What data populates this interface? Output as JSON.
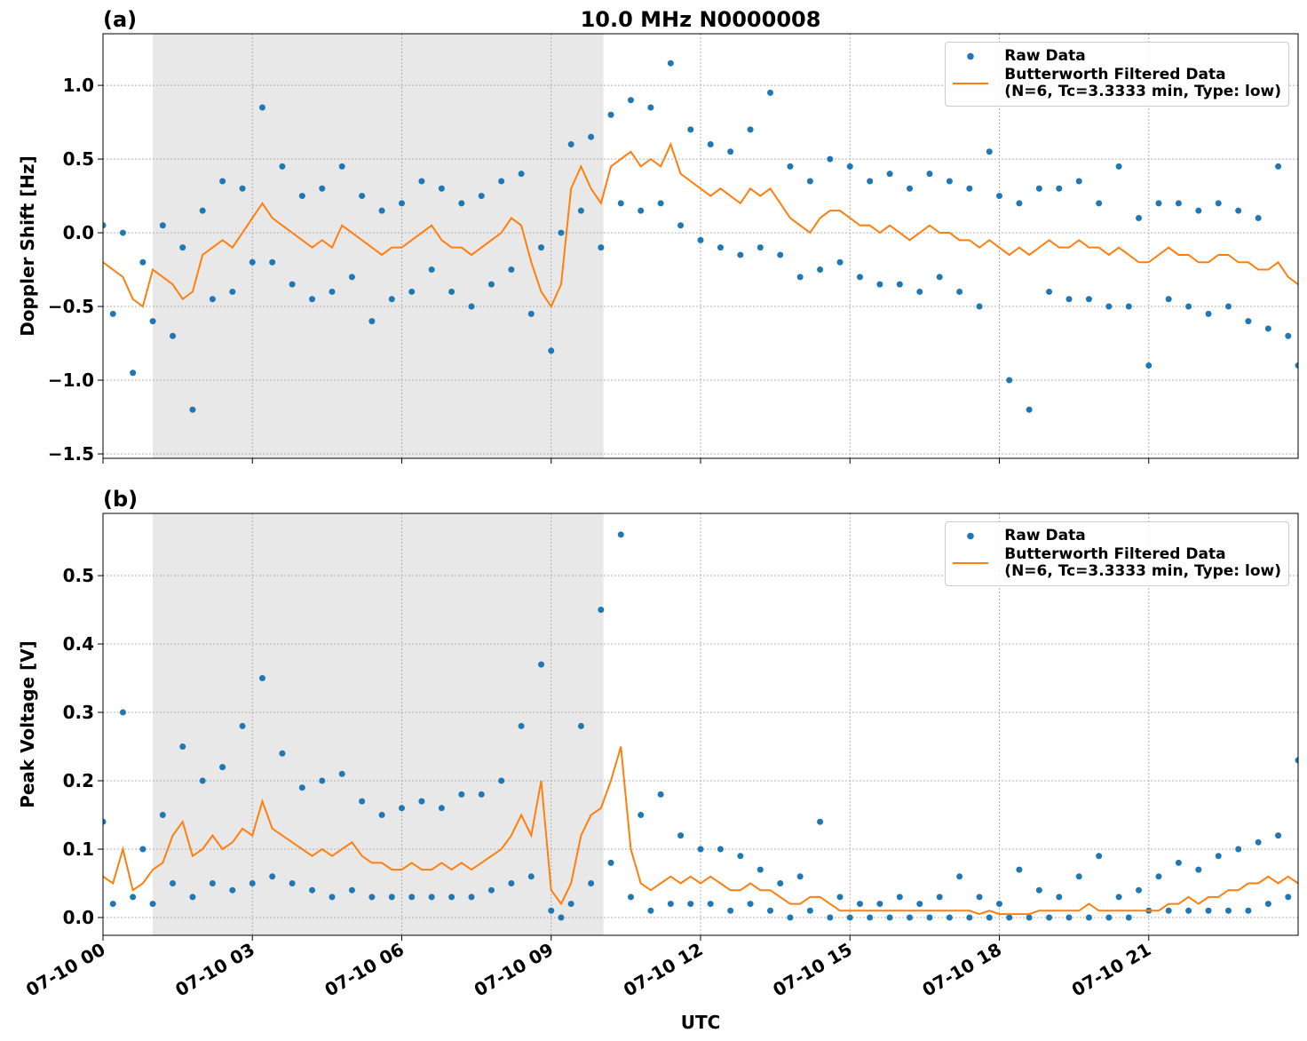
{
  "chart_data": [
    {
      "type": "scatter-line",
      "panel_label": "(a)",
      "title": "10.0 MHz N0000008",
      "ylabel": "Doppler Shift [Hz]",
      "xlim": [
        0,
        24
      ],
      "ylim": [
        -1.53,
        1.35
      ],
      "yticks": [
        {
          "value": -1.5,
          "label": "−1.5"
        },
        {
          "value": -1.0,
          "label": "−1.0"
        },
        {
          "value": -0.5,
          "label": "−0.5"
        },
        {
          "value": 0.0,
          "label": "0.0"
        },
        0.5,
        {
          "value": 1.0,
          "label": "1.0"
        }
      ],
      "grid": true,
      "shade": [
        1,
        10.05
      ],
      "legend": "upper right",
      "x": [
        0,
        0.2,
        0.4,
        0.6,
        0.8,
        1,
        1.2,
        1.4,
        1.6,
        1.8,
        2,
        2.2,
        2.4,
        2.6,
        2.8,
        3,
        3.2,
        3.4,
        3.6,
        3.8,
        4,
        4.2,
        4.4,
        4.6,
        4.8,
        5,
        5.2,
        5.4,
        5.6,
        5.8,
        6,
        6.2,
        6.4,
        6.6,
        6.8,
        7,
        7.2,
        7.4,
        7.6,
        7.8,
        8,
        8.2,
        8.4,
        8.6,
        8.8,
        9,
        9.2,
        9.4,
        9.6,
        9.8,
        10,
        10.2,
        10.4,
        10.6,
        10.8,
        11,
        11.2,
        11.4,
        11.6,
        11.8,
        12,
        12.2,
        12.4,
        12.6,
        12.8,
        13,
        13.2,
        13.4,
        13.6,
        13.8,
        14,
        14.2,
        14.4,
        14.6,
        14.8,
        15,
        15.2,
        15.4,
        15.6,
        15.8,
        16,
        16.2,
        16.4,
        16.6,
        16.8,
        17,
        17.2,
        17.4,
        17.6,
        17.8,
        18,
        18.2,
        18.4,
        18.6,
        18.8,
        19,
        19.2,
        19.4,
        19.6,
        19.8,
        20,
        20.2,
        20.4,
        20.6,
        20.8,
        21,
        21.2,
        21.4,
        21.6,
        21.8,
        22,
        22.2,
        22.4,
        22.6,
        22.8,
        23,
        23.2,
        23.4,
        23.6,
        23.8,
        24
      ],
      "series": [
        {
          "name": "Raw Data",
          "kind": "dots",
          "color": "#1f77b4",
          "values": [
            0.05,
            -0.55,
            0.0,
            -0.95,
            -0.2,
            -0.6,
            0.05,
            -0.7,
            -0.1,
            -1.2,
            0.15,
            -0.45,
            0.35,
            -0.4,
            0.3,
            -0.2,
            0.85,
            -0.2,
            0.45,
            -0.35,
            0.25,
            -0.45,
            0.3,
            -0.4,
            0.45,
            -0.3,
            0.25,
            -0.6,
            0.15,
            -0.45,
            0.2,
            -0.4,
            0.35,
            -0.25,
            0.3,
            -0.4,
            0.2,
            -0.5,
            0.25,
            -0.35,
            0.35,
            -0.25,
            0.4,
            -0.55,
            -0.1,
            -0.8,
            0.0,
            0.6,
            0.15,
            0.65,
            -0.1,
            0.8,
            0.2,
            0.9,
            0.15,
            0.85,
            0.2,
            1.15,
            0.05,
            0.7,
            -0.05,
            0.6,
            -0.1,
            0.55,
            -0.15,
            0.7,
            -0.1,
            0.95,
            -0.15,
            0.45,
            -0.3,
            0.35,
            -0.25,
            0.5,
            -0.2,
            0.45,
            -0.3,
            0.35,
            -0.35,
            0.4,
            -0.35,
            0.3,
            -0.4,
            0.4,
            -0.3,
            0.35,
            -0.4,
            0.3,
            -0.5,
            0.55,
            0.25,
            -1.0,
            0.2,
            -1.2,
            0.3,
            -0.4,
            0.3,
            -0.45,
            0.35,
            -0.45,
            0.2,
            -0.5,
            0.45,
            -0.5,
            0.1,
            -0.9,
            0.2,
            -0.45,
            0.2,
            -0.5,
            0.15,
            -0.55,
            0.2,
            -0.5,
            0.15,
            -0.6,
            0.1,
            -0.65,
            0.45,
            -0.7,
            -0.9
          ]
        },
        {
          "name": "Butterworth Filtered Data\n(N=6, Tc=3.3333 min, Type: low)",
          "kind": "line",
          "color": "#ff7f0e",
          "values": [
            -0.2,
            -0.25,
            -0.3,
            -0.45,
            -0.5,
            -0.25,
            -0.3,
            -0.35,
            -0.45,
            -0.4,
            -0.15,
            -0.1,
            -0.05,
            -0.1,
            0.0,
            0.1,
            0.2,
            0.1,
            0.05,
            0.0,
            -0.05,
            -0.1,
            -0.05,
            -0.1,
            0.05,
            0.0,
            -0.05,
            -0.1,
            -0.15,
            -0.1,
            -0.1,
            -0.05,
            0.0,
            0.05,
            -0.05,
            -0.1,
            -0.1,
            -0.15,
            -0.1,
            -0.05,
            0.0,
            0.1,
            0.05,
            -0.2,
            -0.4,
            -0.5,
            -0.35,
            0.3,
            0.45,
            0.3,
            0.2,
            0.45,
            0.5,
            0.55,
            0.45,
            0.5,
            0.45,
            0.6,
            0.4,
            0.35,
            0.3,
            0.25,
            0.3,
            0.25,
            0.2,
            0.3,
            0.25,
            0.3,
            0.2,
            0.1,
            0.05,
            0.0,
            0.1,
            0.15,
            0.15,
            0.1,
            0.05,
            0.05,
            0.0,
            0.05,
            0.0,
            -0.05,
            0.0,
            0.05,
            0.0,
            0.0,
            -0.05,
            -0.05,
            -0.1,
            -0.05,
            -0.1,
            -0.15,
            -0.1,
            -0.15,
            -0.1,
            -0.05,
            -0.1,
            -0.1,
            -0.05,
            -0.1,
            -0.1,
            -0.15,
            -0.1,
            -0.15,
            -0.2,
            -0.2,
            -0.15,
            -0.1,
            -0.15,
            -0.15,
            -0.2,
            -0.2,
            -0.15,
            -0.15,
            -0.2,
            -0.2,
            -0.25,
            -0.25,
            -0.2,
            -0.3,
            -0.35
          ]
        }
      ]
    },
    {
      "type": "scatter-line",
      "panel_label": "(b)",
      "ylabel": "Peak Voltage [V]",
      "xlabel": "UTC",
      "xlim": [
        0,
        24
      ],
      "ylim": [
        -0.026,
        0.591
      ],
      "xticks": [
        {
          "value": 0,
          "label": "07-10 00"
        },
        {
          "value": 3,
          "label": "07-10 03"
        },
        {
          "value": 6,
          "label": "07-10 06"
        },
        {
          "value": 9,
          "label": "07-10 09"
        },
        {
          "value": 12,
          "label": "07-10 12"
        },
        {
          "value": 15,
          "label": "07-10 15"
        },
        {
          "value": 18,
          "label": "07-10 18"
        },
        {
          "value": 21,
          "label": "07-10 21"
        }
      ],
      "yticks": [
        {
          "value": 0.0,
          "label": "0.0"
        },
        0.1,
        0.2,
        0.3,
        0.4,
        0.5
      ],
      "grid": true,
      "shade": [
        1,
        10.05
      ],
      "legend": "upper right",
      "x": [
        0,
        0.2,
        0.4,
        0.6,
        0.8,
        1,
        1.2,
        1.4,
        1.6,
        1.8,
        2,
        2.2,
        2.4,
        2.6,
        2.8,
        3,
        3.2,
        3.4,
        3.6,
        3.8,
        4,
        4.2,
        4.4,
        4.6,
        4.8,
        5,
        5.2,
        5.4,
        5.6,
        5.8,
        6,
        6.2,
        6.4,
        6.6,
        6.8,
        7,
        7.2,
        7.4,
        7.6,
        7.8,
        8,
        8.2,
        8.4,
        8.6,
        8.8,
        9,
        9.2,
        9.4,
        9.6,
        9.8,
        10,
        10.2,
        10.4,
        10.6,
        10.8,
        11,
        11.2,
        11.4,
        11.6,
        11.8,
        12,
        12.2,
        12.4,
        12.6,
        12.8,
        13,
        13.2,
        13.4,
        13.6,
        13.8,
        14,
        14.2,
        14.4,
        14.6,
        14.8,
        15,
        15.2,
        15.4,
        15.6,
        15.8,
        16,
        16.2,
        16.4,
        16.6,
        16.8,
        17,
        17.2,
        17.4,
        17.6,
        17.8,
        18,
        18.2,
        18.4,
        18.6,
        18.8,
        19,
        19.2,
        19.4,
        19.6,
        19.8,
        20,
        20.2,
        20.4,
        20.6,
        20.8,
        21,
        21.2,
        21.4,
        21.6,
        21.8,
        22,
        22.2,
        22.4,
        22.6,
        22.8,
        23,
        23.2,
        23.4,
        23.6,
        23.8,
        24
      ],
      "series": [
        {
          "name": "Raw Data",
          "kind": "dots",
          "color": "#1f77b4",
          "values": [
            0.14,
            0.02,
            0.3,
            0.03,
            0.1,
            0.02,
            0.15,
            0.05,
            0.25,
            0.03,
            0.2,
            0.05,
            0.22,
            0.04,
            0.28,
            0.05,
            0.35,
            0.06,
            0.24,
            0.05,
            0.19,
            0.04,
            0.2,
            0.03,
            0.21,
            0.04,
            0.17,
            0.03,
            0.15,
            0.03,
            0.16,
            0.03,
            0.17,
            0.03,
            0.16,
            0.03,
            0.18,
            0.03,
            0.18,
            0.04,
            0.2,
            0.05,
            0.28,
            0.06,
            0.37,
            0.01,
            0.0,
            0.02,
            0.28,
            0.05,
            0.45,
            0.08,
            0.56,
            0.03,
            0.15,
            0.01,
            0.18,
            0.02,
            0.12,
            0.02,
            0.1,
            0.02,
            0.1,
            0.01,
            0.09,
            0.02,
            0.07,
            0.01,
            0.05,
            0.0,
            0.06,
            0.01,
            0.14,
            0.0,
            0.03,
            0.0,
            0.02,
            0.0,
            0.02,
            0.0,
            0.03,
            0.0,
            0.02,
            0.0,
            0.03,
            0.0,
            0.06,
            0.0,
            0.03,
            0.0,
            0.02,
            0.0,
            0.07,
            0.0,
            0.04,
            0.0,
            0.03,
            0.0,
            0.06,
            0.0,
            0.09,
            0.0,
            0.03,
            0.0,
            0.04,
            0.01,
            0.06,
            0.01,
            0.08,
            0.01,
            0.07,
            0.01,
            0.09,
            0.01,
            0.1,
            0.01,
            0.11,
            0.02,
            0.12,
            0.03,
            0.23
          ]
        },
        {
          "name": "Butterworth Filtered Data\n(N=6, Tc=3.3333 min, Type: low)",
          "kind": "line",
          "color": "#ff7f0e",
          "values": [
            0.06,
            0.05,
            0.1,
            0.04,
            0.05,
            0.07,
            0.08,
            0.12,
            0.14,
            0.09,
            0.1,
            0.12,
            0.1,
            0.11,
            0.13,
            0.12,
            0.17,
            0.13,
            0.12,
            0.11,
            0.1,
            0.09,
            0.1,
            0.09,
            0.1,
            0.11,
            0.09,
            0.08,
            0.08,
            0.07,
            0.07,
            0.08,
            0.07,
            0.07,
            0.08,
            0.07,
            0.08,
            0.07,
            0.08,
            0.09,
            0.1,
            0.12,
            0.15,
            0.12,
            0.2,
            0.04,
            0.02,
            0.05,
            0.12,
            0.15,
            0.16,
            0.2,
            0.25,
            0.1,
            0.05,
            0.04,
            0.05,
            0.06,
            0.05,
            0.06,
            0.05,
            0.06,
            0.05,
            0.04,
            0.04,
            0.05,
            0.04,
            0.04,
            0.03,
            0.02,
            0.02,
            0.03,
            0.03,
            0.02,
            0.01,
            0.01,
            0.01,
            0.01,
            0.01,
            0.01,
            0.01,
            0.01,
            0.01,
            0.01,
            0.01,
            0.01,
            0.01,
            0.01,
            0.005,
            0.01,
            0.005,
            0.005,
            0.005,
            0.005,
            0.01,
            0.01,
            0.01,
            0.01,
            0.01,
            0.02,
            0.01,
            0.01,
            0.01,
            0.01,
            0.01,
            0.01,
            0.01,
            0.02,
            0.02,
            0.03,
            0.02,
            0.03,
            0.03,
            0.04,
            0.04,
            0.05,
            0.05,
            0.06,
            0.05,
            0.06,
            0.05
          ]
        }
      ]
    }
  ]
}
